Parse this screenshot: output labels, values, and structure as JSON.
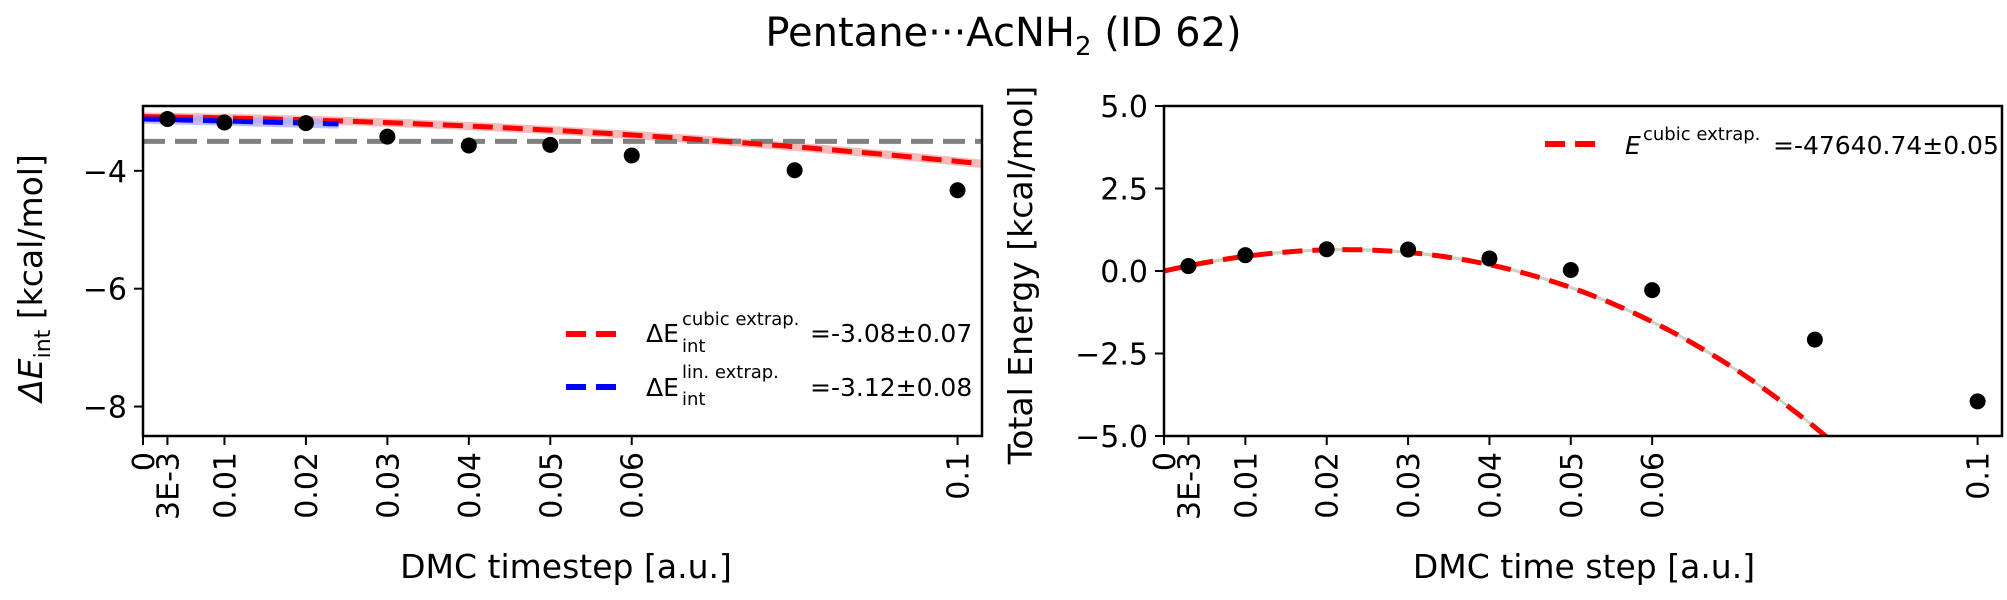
{
  "figure": {
    "title_main": "Pentane···AcNH",
    "title_sub": "2",
    "title_tail": " (ID 62)"
  },
  "colors": {
    "cubic_fit": "#ff0000",
    "linear_fit": "#0000ff",
    "reference": "#808080",
    "points": "#000000",
    "cubic_band": "#f4a3a3",
    "linear_band": "#a8a8ff",
    "right_band": "#b8c4b0"
  },
  "chart_data": [
    {
      "type": "line",
      "xlabel": "DMC timestep [a.u.]",
      "ylabel_main": "ΔE",
      "ylabel_sub": "int",
      "ylabel_tail": " [kcal/mol]",
      "xlim": [
        0,
        0.103
      ],
      "ylim": [
        -8.5,
        -2.9
      ],
      "xticks": [
        0,
        0.003,
        0.01,
        0.02,
        0.03,
        0.04,
        0.05,
        0.06,
        0.1
      ],
      "xtick_labels": [
        "0",
        "3E-3",
        "0.01",
        "0.02",
        "0.03",
        "0.04",
        "0.05",
        "0.06",
        "0.1"
      ],
      "yticks": [
        -4,
        -6,
        -8
      ],
      "ytick_labels": [
        "−4",
        "−6",
        "−8"
      ],
      "points": {
        "x": [
          0.003,
          0.01,
          0.02,
          0.03,
          0.04,
          0.05,
          0.06,
          0.08,
          0.1
        ],
        "y": [
          -3.12,
          -3.18,
          -3.19,
          -3.42,
          -3.57,
          -3.56,
          -3.74,
          -3.99,
          -4.33
        ]
      },
      "reference_line": {
        "y": -3.5
      },
      "series": [
        {
          "kind": "cubic",
          "x_range": [
            0,
            0.103
          ],
          "coeffs": [
            -3.08,
            -1.6,
            -60,
            0
          ],
          "band": 0.07
        },
        {
          "kind": "linear",
          "x_range": [
            0,
            0.024
          ],
          "coeffs": [
            -3.12,
            -3.5,
            0,
            0
          ],
          "band": 0.08
        }
      ],
      "legend": {
        "position": "lower right",
        "entries": [
          {
            "label_main": "ΔE",
            "label_sup": "cubic extrap.",
            "label_sub": "int",
            "value": "=-3.08±0.07"
          },
          {
            "label_main": "ΔE",
            "label_sup": "lin. extrap.",
            "label_sub": "int",
            "value": "=-3.12±0.08"
          }
        ]
      }
    },
    {
      "type": "line",
      "xlabel": "DMC time step [a.u.]",
      "ylabel": "Total Energy [kcal/mol]",
      "xlim": [
        0,
        0.103
      ],
      "ylim": [
        -5.0,
        5.0
      ],
      "xticks": [
        0,
        0.003,
        0.01,
        0.02,
        0.03,
        0.04,
        0.05,
        0.06,
        0.1
      ],
      "xtick_labels": [
        "0",
        "3E-3",
        "0.01",
        "0.02",
        "0.03",
        "0.04",
        "0.05",
        "0.06",
        "0.1"
      ],
      "yticks": [
        5.0,
        2.5,
        0.0,
        -2.5,
        -5.0
      ],
      "ytick_labels": [
        "5.0",
        "2.5",
        "0.0",
        "−2.5",
        "−5.0"
      ],
      "points": {
        "x": [
          0.003,
          0.01,
          0.02,
          0.03,
          0.04,
          0.05,
          0.06,
          0.08,
          0.1
        ],
        "y": [
          0.15,
          0.48,
          0.66,
          0.65,
          0.38,
          0.03,
          -0.58,
          -2.08,
          -3.95
        ]
      },
      "series": [
        {
          "kind": "cubic",
          "x_range": [
            0,
            0.103
          ],
          "coeffs": [
            0.0,
            56,
            -1120,
            -4000
          ],
          "band": 0.05
        }
      ],
      "legend": {
        "position": "upper right",
        "entries": [
          {
            "label_main": "E",
            "label_sup": "cubic extrap.",
            "value": "=-47640.74±0.05"
          }
        ]
      }
    }
  ]
}
